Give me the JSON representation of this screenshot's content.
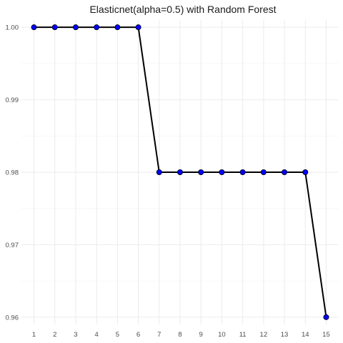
{
  "chart_data": {
    "type": "line",
    "title": "Elasticnet(alpha=0.5) with Random Forest",
    "xlabel": "",
    "ylabel": "",
    "x": [
      1,
      2,
      3,
      4,
      5,
      6,
      7,
      8,
      9,
      10,
      11,
      12,
      13,
      14,
      15
    ],
    "x_tick_labels": [
      "1",
      "2",
      "3",
      "4",
      "5",
      "6",
      "7",
      "8",
      "9",
      "10",
      "11",
      "12",
      "13",
      "14",
      "15"
    ],
    "y": [
      1.0,
      1.0,
      1.0,
      1.0,
      1.0,
      1.0,
      0.98,
      0.98,
      0.98,
      0.98,
      0.98,
      0.98,
      0.98,
      0.98,
      0.96
    ],
    "y_ticks": [
      0.96,
      0.97,
      0.98,
      0.99,
      1.0
    ],
    "y_tick_labels": [
      "0.96",
      "0.97",
      "0.98",
      "0.99",
      "1.00"
    ],
    "xlim": [
      0.4,
      15.6
    ],
    "ylim": [
      0.959,
      1.001
    ],
    "grid": true,
    "legend": "none",
    "line_color": "#000000",
    "point_color": "#0000ff"
  }
}
